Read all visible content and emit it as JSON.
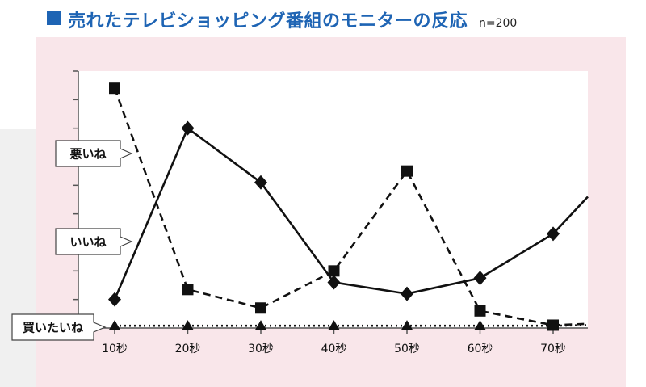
{
  "title": "売れたテレビショッピング番組のモニターの反応",
  "sample_size": "n=200",
  "chart_data": {
    "type": "line",
    "title": "売れたテレビショッピング番組のモニターの反応",
    "xlabel": "",
    "ylabel": "",
    "categories": [
      "10秒",
      "20秒",
      "30秒",
      "40秒",
      "50秒",
      "60秒",
      "70秒"
    ],
    "ylim": [
      0,
      9
    ],
    "y_ticks": 9,
    "grid": false,
    "legend": "callout labels on left",
    "series": [
      {
        "name": "悪いね",
        "style": "dashed",
        "marker": "square",
        "color": "#111111",
        "values": [
          8.4,
          1.35,
          0.7,
          2.0,
          5.5,
          0.6,
          0.1
        ],
        "end_value": 0.15
      },
      {
        "name": "いいね",
        "style": "solid",
        "marker": "diamond",
        "color": "#111111",
        "values": [
          1.0,
          7.0,
          5.1,
          1.6,
          1.2,
          1.75,
          3.3
        ],
        "end_value": 4.6
      },
      {
        "name": "買いたいね",
        "style": "dotted",
        "marker": "triangle",
        "color": "#111111",
        "values": [
          0.08,
          0.08,
          0.08,
          0.08,
          0.08,
          0.08,
          0.08
        ],
        "end_value": 0.1
      }
    ]
  }
}
